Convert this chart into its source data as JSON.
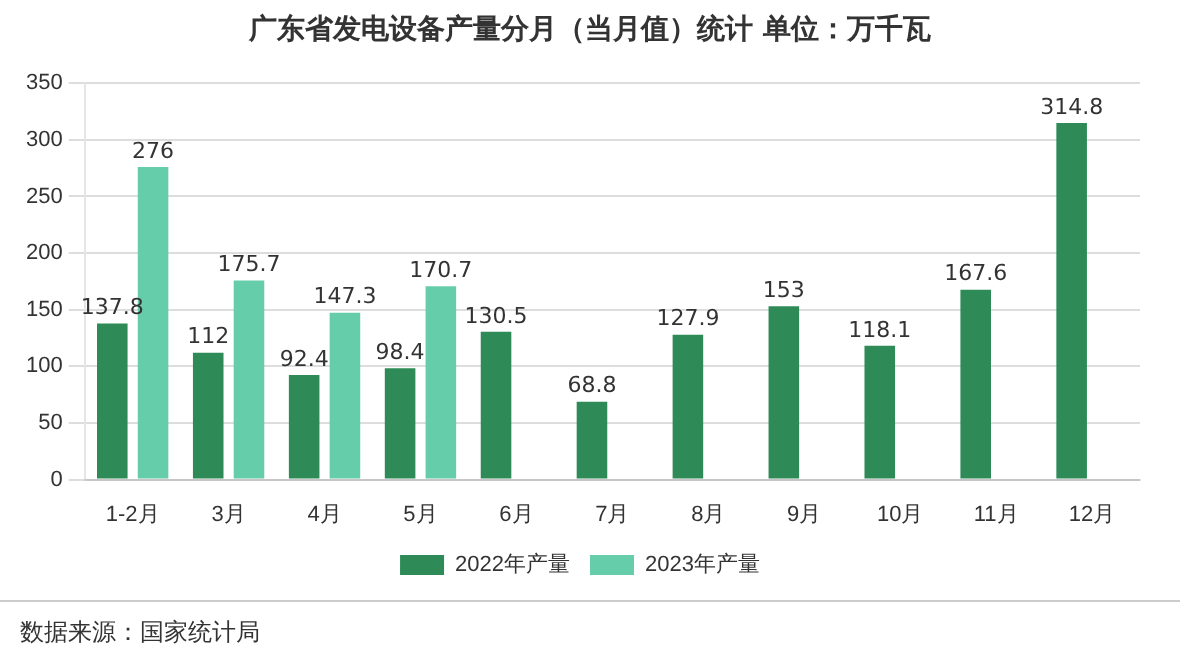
{
  "chart_data": {
    "type": "bar",
    "title": "广东省发电设备产量分月（当月值）统计 单位：万千瓦",
    "categories": [
      "1-2月",
      "3月",
      "4月",
      "5月",
      "6月",
      "7月",
      "8月",
      "9月",
      "10月",
      "11月",
      "12月"
    ],
    "series": [
      {
        "name": "2022年产量",
        "color": "#2e8b57",
        "values": [
          137.8,
          112,
          92.4,
          98.4,
          130.5,
          68.8,
          127.9,
          153,
          118.1,
          167.6,
          314.8
        ]
      },
      {
        "name": "2023年产量",
        "color": "#66cdaa",
        "values": [
          276,
          175.7,
          147.3,
          170.7,
          null,
          null,
          null,
          null,
          null,
          null,
          null
        ]
      }
    ],
    "ylim": [
      0,
      350
    ],
    "yticks": [
      0,
      50,
      100,
      150,
      200,
      250,
      300,
      350
    ],
    "grid": "y",
    "legend": "bottom",
    "data_labels": true,
    "annotations": [
      "数据来源：国家统计局"
    ]
  }
}
